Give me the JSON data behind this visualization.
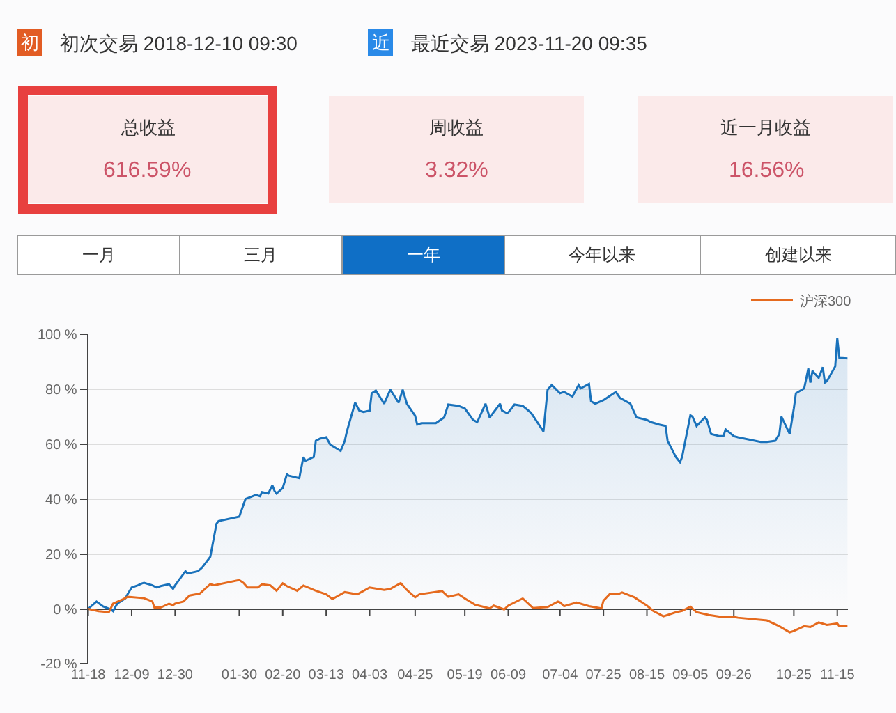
{
  "chart_data": [
    {
      "type": "other",
      "annotations": [
        "初",
        "初次交易 2018-12-10 09:30",
        "近",
        "最近交易 2023-11-20 09:35"
      ],
      "colors": [
        "#e25c24",
        "#2a8ae8"
      ]
    },
    {
      "type": "other",
      "annotations": [
        "总收益",
        "616.59%",
        "周收益",
        "3.32%",
        "近一月收益",
        "16.56%"
      ],
      "colors": [
        "#e8403f",
        "#fbeaea",
        "#fbeaea"
      ]
    },
    {
      "type": "other",
      "categories": [
        "一月",
        "三月",
        "一年",
        "今年以来",
        "创建以来"
      ],
      "colors": [
        "#ffffff",
        "#ffffff",
        "#0f6fc6",
        "#ffffff",
        "#ffffff"
      ]
    },
    {
      "type": "line",
      "series": [
        {
          "type": "area",
          "color": "#1a72bb",
          "x": [
            "2022-11-18",
            "2022-11-22",
            "2022-11-25",
            "2022-11-29",
            "2022-11-30",
            "2022-12-02",
            "2022-12-06",
            "2022-12-07",
            "2022-12-09",
            "2022-12-12",
            "2022-12-14",
            "2022-12-15",
            "2022-12-19",
            "2022-12-21",
            "2022-12-23",
            "2022-12-27",
            "2022-12-29",
            "2022-12-30",
            "2023-01-04",
            "2023-01-05",
            "2023-01-10",
            "2023-01-12",
            "2023-01-16",
            "2023-01-19",
            "2023-01-20",
            "2023-01-30",
            "2023-02-02",
            "2023-02-07",
            "2023-02-09",
            "2023-02-10",
            "2023-02-13",
            "2023-02-15",
            "2023-02-16",
            "2023-02-17",
            "2023-02-20",
            "2023-02-22",
            "2023-02-23",
            "2023-02-28",
            "2023-03-02",
            "2023-03-03",
            "2023-03-07",
            "2023-03-08",
            "2023-03-10",
            "2023-03-13",
            "2023-03-15",
            "2023-03-20",
            "2023-03-22",
            "2023-03-23",
            "2023-03-27",
            "2023-03-29",
            "2023-03-31",
            "2023-04-03",
            "2023-04-04",
            "2023-04-06",
            "2023-04-10",
            "2023-04-13",
            "2023-04-17",
            "2023-04-19",
            "2023-04-21",
            "2023-04-25",
            "2023-04-26",
            "2023-04-28",
            "2023-05-05",
            "2023-05-09",
            "2023-05-11",
            "2023-05-16",
            "2023-05-19",
            "2023-05-23",
            "2023-05-25",
            "2023-05-29",
            "2023-05-31",
            "2023-06-05",
            "2023-06-06",
            "2023-06-08",
            "2023-06-09",
            "2023-06-12",
            "2023-06-16",
            "2023-06-20",
            "2023-06-26",
            "2023-06-28",
            "2023-06-30",
            "2023-07-04",
            "2023-07-06",
            "2023-07-10",
            "2023-07-13",
            "2023-07-14",
            "2023-07-18",
            "2023-07-19",
            "2023-07-21",
            "2023-07-25",
            "2023-07-31",
            "2023-08-02",
            "2023-08-07",
            "2023-08-10",
            "2023-08-15",
            "2023-08-17",
            "2023-08-21",
            "2023-08-24",
            "2023-08-25",
            "2023-08-29",
            "2023-08-31",
            "2023-09-01",
            "2023-09-05",
            "2023-09-06",
            "2023-09-08",
            "2023-09-12",
            "2023-09-13",
            "2023-09-15",
            "2023-09-19",
            "2023-09-21",
            "2023-09-22",
            "2023-09-26",
            "2023-09-28",
            "2023-10-09",
            "2023-10-12",
            "2023-10-16",
            "2023-10-18",
            "2023-10-19",
            "2023-10-23",
            "2023-10-25",
            "2023-10-26",
            "2023-10-30",
            "2023-11-01",
            "2023-11-02",
            "2023-11-03",
            "2023-11-06",
            "2023-11-08",
            "2023-11-09",
            "2023-11-10",
            "2023-11-14",
            "2023-11-15",
            "2023-11-16",
            "2023-11-20"
          ],
          "values": [
            0,
            2.7,
            1,
            -0.2,
            -0.8,
            1.9,
            3.9,
            5.3,
            7.8,
            8.6,
            9.3,
            9.5,
            8.6,
            7.8,
            8.3,
            9,
            7.3,
            8.6,
            13.7,
            12.9,
            13.7,
            15,
            19,
            31,
            32,
            33.6,
            40,
            41.5,
            41,
            42.5,
            42,
            45,
            43,
            42,
            44,
            49,
            48.5,
            47.6,
            55.3,
            53.9,
            55.3,
            61.2,
            62,
            62.5,
            59.8,
            57.5,
            61.2,
            64.6,
            75.1,
            72.2,
            71.7,
            72.2,
            78.5,
            79.5,
            74.7,
            79.8,
            75.1,
            79.8,
            74.7,
            70.3,
            67.1,
            67.6,
            67.6,
            69.7,
            74.4,
            73.9,
            73,
            68.8,
            68,
            74.7,
            69.7,
            74.7,
            72.2,
            71.4,
            71.5,
            74.4,
            73.9,
            71.4,
            64.6,
            79.8,
            81.5,
            78.5,
            79,
            77.3,
            81.5,
            80.3,
            81.9,
            75.6,
            74.7,
            76,
            79,
            76.8,
            74.7,
            69.7,
            68.8,
            68,
            67.1,
            66.6,
            61.2,
            55.3,
            53.4,
            55.3,
            70.5,
            70,
            66.6,
            69.7,
            68.8,
            63.7,
            62.9,
            62.9,
            65.4,
            62.9,
            62.5,
            60.8,
            60.8,
            61.2,
            63.7,
            70,
            63.7,
            73,
            78.5,
            80.3,
            87.5,
            82.4,
            86.6,
            84.1,
            88,
            82.4,
            82.9,
            88.3,
            98.5,
            91.4,
            91.2
          ]
        },
        {
          "name": "沪深300",
          "color": "#e56a1e",
          "x": [
            "2022-11-18",
            "2022-11-23",
            "2022-11-28",
            "2022-11-30",
            "2022-12-05",
            "2022-12-07",
            "2022-12-09",
            "2022-12-15",
            "2022-12-19",
            "2022-12-20",
            "2022-12-23",
            "2022-12-27",
            "2022-12-29",
            "2022-12-30",
            "2023-01-03",
            "2023-01-06",
            "2023-01-11",
            "2023-01-16",
            "2023-01-18",
            "2023-01-30",
            "2023-02-01",
            "2023-02-03",
            "2023-02-08",
            "2023-02-10",
            "2023-02-14",
            "2023-02-17",
            "2023-02-20",
            "2023-02-22",
            "2023-02-27",
            "2023-03-02",
            "2023-03-08",
            "2023-03-13",
            "2023-03-16",
            "2023-03-22",
            "2023-03-28",
            "2023-04-03",
            "2023-04-10",
            "2023-04-13",
            "2023-04-18",
            "2023-04-21",
            "2023-04-25",
            "2023-04-27",
            "2023-05-08",
            "2023-05-11",
            "2023-05-16",
            "2023-05-19",
            "2023-05-24",
            "2023-05-31",
            "2023-06-02",
            "2023-06-07",
            "2023-06-09",
            "2023-06-16",
            "2023-06-21",
            "2023-06-28",
            "2023-07-03",
            "2023-07-04",
            "2023-07-06",
            "2023-07-12",
            "2023-07-18",
            "2023-07-24",
            "2023-07-25",
            "2023-07-28",
            "2023-08-01",
            "2023-08-03",
            "2023-08-09",
            "2023-08-15",
            "2023-08-18",
            "2023-08-23",
            "2023-08-29",
            "2023-09-01",
            "2023-09-05",
            "2023-09-08",
            "2023-09-14",
            "2023-09-20",
            "2023-09-26",
            "2023-09-28",
            "2023-10-12",
            "2023-10-18",
            "2023-10-23",
            "2023-10-25",
            "2023-10-30",
            "2023-11-02",
            "2023-11-06",
            "2023-11-10",
            "2023-11-15",
            "2023-11-16",
            "2023-11-20"
          ],
          "values": [
            0,
            -0.8,
            -1.2,
            1.9,
            3.6,
            4.4,
            4.3,
            3.9,
            2.7,
            0.5,
            0.5,
            1.9,
            1.4,
            1.9,
            2.7,
            4.9,
            5.6,
            9,
            8.6,
            10.5,
            9.5,
            7.8,
            7.8,
            9,
            8.6,
            6.6,
            9.3,
            8.3,
            6.6,
            8.5,
            6.6,
            5.3,
            3.6,
            6.1,
            5.3,
            7.8,
            6.9,
            7.3,
            9.4,
            6.9,
            4.2,
            5.3,
            6.5,
            4.4,
            5.3,
            3.8,
            1.5,
            0.2,
            1.2,
            -0.2,
            1.2,
            3.8,
            0.3,
            0.7,
            2.7,
            2.4,
            1,
            2.3,
            1,
            0.2,
            3,
            5.4,
            5.3,
            6,
            4.2,
            1.2,
            -0.7,
            -2.7,
            -1.2,
            -0.7,
            0.8,
            -1.2,
            -2.2,
            -2.9,
            -2.9,
            -3.2,
            -4.2,
            -6.3,
            -8.5,
            -8,
            -6.3,
            -6.6,
            -4.9,
            -5.8,
            -5.3,
            -6.3,
            -6.2
          ]
        }
      ],
      "xlim": [
        "2022-11-18",
        "2023-11-20"
      ],
      "xticks": [
        {
          "value": "2022-11-18",
          "label": "11-18"
        },
        {
          "value": "2022-12-09",
          "label": "12-09"
        },
        {
          "value": "2022-12-30",
          "label": "12-30"
        },
        {
          "value": "2023-01-30",
          "label": "01-30"
        },
        {
          "value": "2023-02-20",
          "label": "02-20"
        },
        {
          "value": "2023-03-13",
          "label": "03-13"
        },
        {
          "value": "2023-04-03",
          "label": "04-03"
        },
        {
          "value": "2023-04-25",
          "label": "04-25"
        },
        {
          "value": "2023-05-19",
          "label": "05-19"
        },
        {
          "value": "2023-06-09",
          "label": "06-09"
        },
        {
          "value": "2023-07-04",
          "label": "07-04"
        },
        {
          "value": "2023-07-25",
          "label": "07-25"
        },
        {
          "value": "2023-08-15",
          "label": "08-15"
        },
        {
          "value": "2023-09-05",
          "label": "09-05"
        },
        {
          "value": "2023-09-26",
          "label": "09-26"
        },
        {
          "value": "2023-10-25",
          "label": "10-25"
        },
        {
          "value": "2023-11-15",
          "label": "11-15"
        }
      ],
      "ylim": [
        -20,
        100
      ],
      "yticks": [
        {
          "value": -20,
          "label": "-20 %"
        },
        {
          "value": 0,
          "label": "0 %"
        },
        {
          "value": 20,
          "label": "20 %"
        },
        {
          "value": 40,
          "label": "40 %"
        },
        {
          "value": 60,
          "label": "60 %"
        },
        {
          "value": 80,
          "label": "80 %"
        },
        {
          "value": 100,
          "label": "100 %"
        }
      ],
      "grid": "y",
      "legend": "top right"
    }
  ]
}
